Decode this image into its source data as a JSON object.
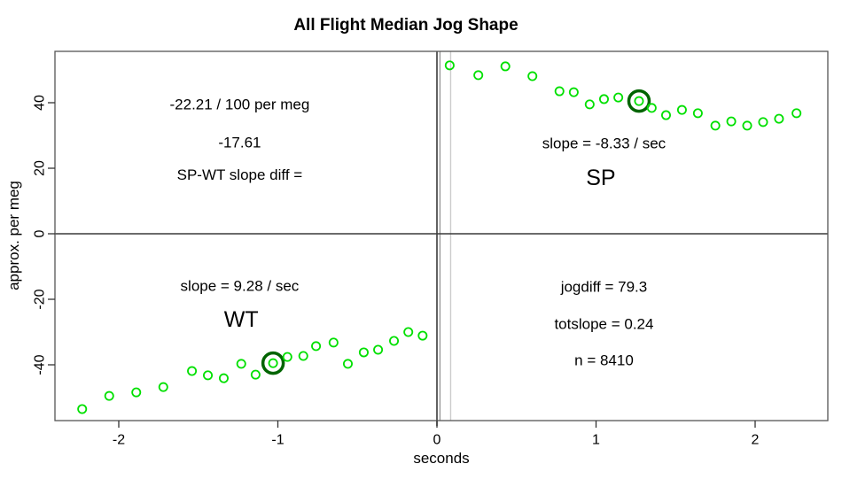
{
  "colors": {
    "points": "#00e000",
    "highlight_ring": "#006400",
    "box": "#555555",
    "zero_lines": "#3a3a3a",
    "guide_medium": "#9a9a9a",
    "guide_light": "#cccccc",
    "tick": "#333333",
    "text": "#000000"
  },
  "chart_data": {
    "type": "scatter",
    "title": "All Flight Median Jog Shape",
    "xlabel": "seconds",
    "ylabel": "approx. per meg",
    "xlim": [
      -2.4,
      2.46
    ],
    "ylim": [
      -57,
      55.7
    ],
    "x_ticks": [
      -2,
      -1,
      0,
      1,
      2
    ],
    "y_ticks": [
      -40,
      -20,
      0,
      20,
      40
    ],
    "grid": false,
    "legend": "none",
    "point_style": "open-circle",
    "series": [
      {
        "name": "WT",
        "highlight_index": 9,
        "points": [
          [
            -2.23,
            -53.5
          ],
          [
            -2.06,
            -49.5
          ],
          [
            -1.89,
            -48.4
          ],
          [
            -1.72,
            -46.8
          ],
          [
            -1.54,
            -41.9
          ],
          [
            -1.44,
            -43.2
          ],
          [
            -1.34,
            -44.1
          ],
          [
            -1.23,
            -39.7
          ],
          [
            -1.14,
            -43.0
          ],
          [
            -1.03,
            -39.5
          ],
          [
            -0.94,
            -37.6
          ],
          [
            -0.84,
            -37.3
          ],
          [
            -0.76,
            -34.3
          ],
          [
            -0.65,
            -33.2
          ],
          [
            -0.56,
            -39.7
          ],
          [
            -0.46,
            -36.2
          ],
          [
            -0.37,
            -35.4
          ],
          [
            -0.27,
            -32.7
          ],
          [
            -0.18,
            -30.0
          ],
          [
            -0.09,
            -31.1
          ]
        ]
      },
      {
        "name": "SP",
        "highlight_index": 9,
        "points": [
          [
            0.08,
            51.4
          ],
          [
            0.26,
            48.4
          ],
          [
            0.43,
            51.1
          ],
          [
            0.6,
            48.1
          ],
          [
            0.77,
            43.5
          ],
          [
            0.86,
            43.2
          ],
          [
            0.96,
            39.5
          ],
          [
            1.05,
            41.1
          ],
          [
            1.14,
            41.6
          ],
          [
            1.27,
            40.5
          ],
          [
            1.35,
            38.4
          ],
          [
            1.44,
            36.2
          ],
          [
            1.54,
            37.8
          ],
          [
            1.64,
            36.8
          ],
          [
            1.75,
            33.0
          ],
          [
            1.85,
            34.3
          ],
          [
            1.95,
            33.0
          ],
          [
            2.05,
            34.1
          ],
          [
            2.15,
            35.1
          ],
          [
            2.26,
            36.8
          ]
        ]
      }
    ],
    "hlines": [
      {
        "y": 0,
        "shade": "dark"
      }
    ],
    "vlines": [
      {
        "x": 0,
        "shade": "dark"
      },
      {
        "x": 0.019,
        "shade": "medium"
      },
      {
        "x": 0.086,
        "shade": "light"
      }
    ],
    "annotations": [
      {
        "text": "-22.21 / 100 per meg",
        "x": -1.24,
        "y": 39.5,
        "size": "normal"
      },
      {
        "text": "-17.61",
        "x": -1.24,
        "y": 27.8,
        "size": "normal"
      },
      {
        "text": "SP-WT slope diff =",
        "x": -1.24,
        "y": 18.0,
        "size": "normal"
      },
      {
        "text": "slope = -8.33 / sec",
        "x": 1.05,
        "y": 27.6,
        "size": "normal"
      },
      {
        "text": "SP",
        "x": 1.03,
        "y": 17.0,
        "size": "large"
      },
      {
        "text": "slope = 9.28 / sec",
        "x": -1.24,
        "y": -15.9,
        "size": "normal"
      },
      {
        "text": "WT",
        "x": -1.23,
        "y": -26.2,
        "size": "large"
      },
      {
        "text": "jogdiff = 79.3",
        "x": 1.05,
        "y": -16.2,
        "size": "normal"
      },
      {
        "text": "totslope = 0.24",
        "x": 1.05,
        "y": -27.6,
        "size": "normal"
      },
      {
        "text": "n = 8410",
        "x": 1.05,
        "y": -38.6,
        "size": "normal"
      }
    ]
  }
}
